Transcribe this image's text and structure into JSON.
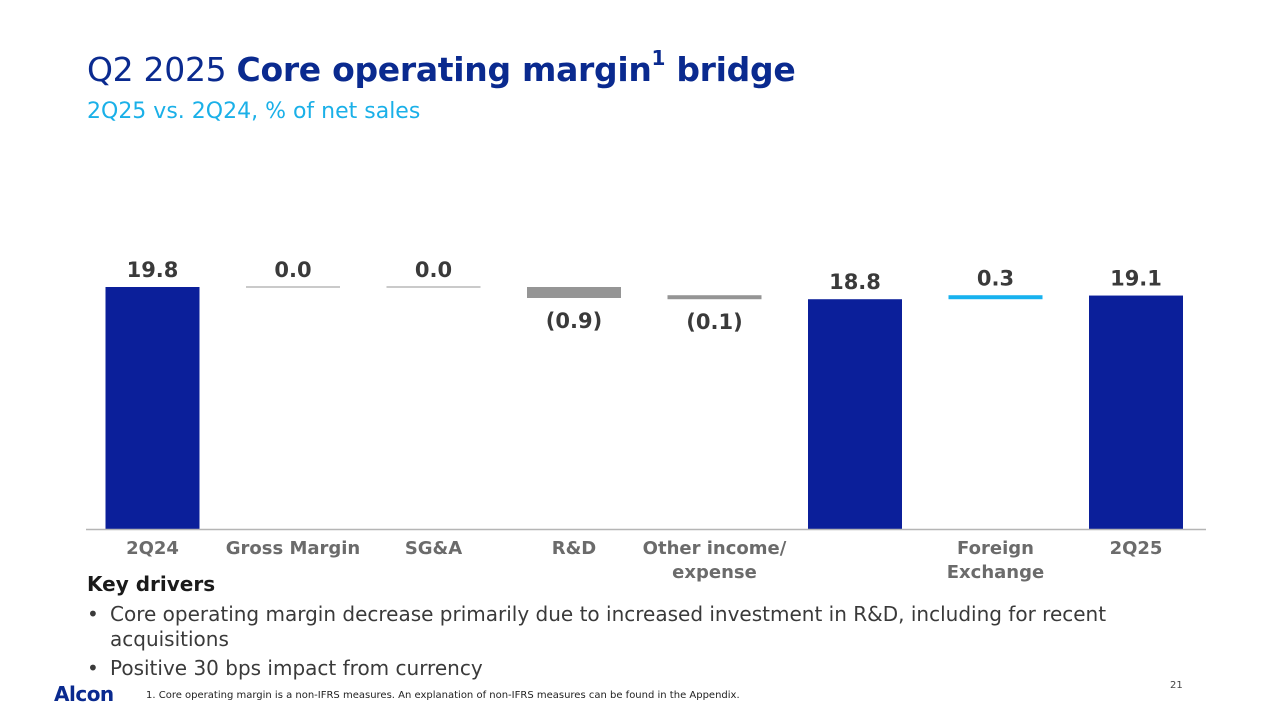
{
  "header": {
    "title_prefix": "Q2 2025 ",
    "title_bold": "Core operating margin",
    "title_sup": "1",
    "title_suffix": " bridge",
    "subtitle": "2Q25 vs. 2Q24, % of net sales"
  },
  "chart_data": {
    "type": "waterfall",
    "title": "Q2 2025 Core operating margin bridge",
    "subtitle": "2Q25 vs. 2Q24, % of net sales",
    "ylabel": "% of net sales",
    "ylim": [
      0,
      19.8
    ],
    "items": [
      {
        "category": [
          "2Q24"
        ],
        "kind": "total",
        "value": 19.8,
        "label": "19.8"
      },
      {
        "category": [
          "Gross Margin"
        ],
        "kind": "delta",
        "value": 0.0,
        "label": "0.0"
      },
      {
        "category": [
          "SG&A"
        ],
        "kind": "delta",
        "value": 0.0,
        "label": "0.0"
      },
      {
        "category": [
          "R&D"
        ],
        "kind": "delta",
        "value": -0.9,
        "label": "(0.9)"
      },
      {
        "category": [
          "Other income/",
          "expense"
        ],
        "kind": "delta",
        "value": -0.1,
        "label": "(0.1)"
      },
      {
        "category": [
          ""
        ],
        "kind": "total",
        "value": 18.8,
        "label": "18.8"
      },
      {
        "category": [
          "Foreign",
          "Exchange"
        ],
        "kind": "delta",
        "value": 0.3,
        "label": "0.3"
      },
      {
        "category": [
          "2Q25"
        ],
        "kind": "total",
        "value": 19.1,
        "label": "19.1"
      }
    ]
  },
  "colors": {
    "total": "#0b1f9a",
    "negative": "#959595",
    "positive": "#18b2ef",
    "axis": "#b5b5b5"
  },
  "key_drivers": {
    "title": "Key drivers",
    "bullet_char": "•",
    "bullets": [
      "Core operating margin decrease primarily due to increased investment in R&D, including for recent acquisitions",
      "Positive 30 bps impact from currency"
    ]
  },
  "footer": {
    "logo_text": "Alcon",
    "footnote": "1.   Core operating margin is a non-IFRS measures.  An explanation of non-IFRS measures can be found in the Appendix.",
    "page_number": "21"
  }
}
